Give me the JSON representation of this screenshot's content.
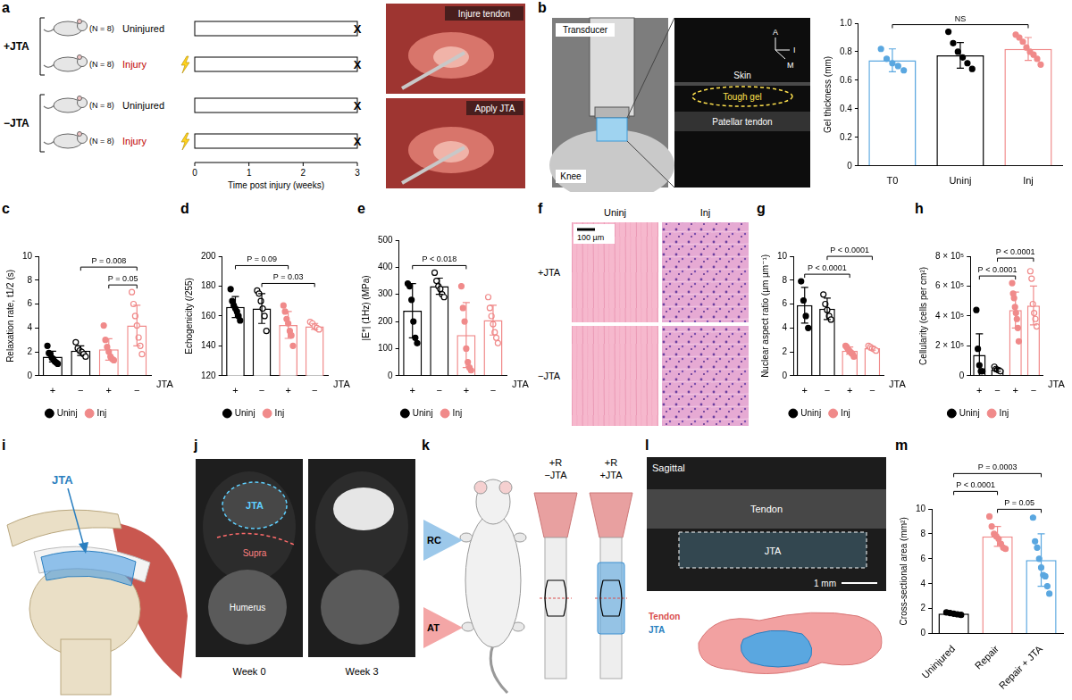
{
  "chart_data": [
    {
      "type": "bar",
      "y_label": "Gel thickness (mm)",
      "categories": [
        "T0",
        "Uninj",
        "Inj"
      ],
      "values": [
        0.74,
        0.775,
        0.82
      ],
      "errors": [
        0.08,
        0.09,
        0.08
      ],
      "points": [
        [
          0.82,
          0.75,
          0.72,
          0.7,
          0.67
        ],
        [
          0.94,
          0.86,
          0.8,
          0.76,
          0.72,
          0.68
        ],
        [
          0.92,
          0.9,
          0.87,
          0.83,
          0.8,
          0.78,
          0.75,
          0.71
        ]
      ],
      "colors": [
        "#5aa7e0",
        "#000000",
        "#f08a8a"
      ],
      "ylim": [
        0,
        1
      ],
      "yticks": [
        0,
        0.2,
        0.4,
        0.6,
        0.8,
        {
          "value": 1,
          "label": "1.0"
        }
      ],
      "grid": false,
      "comparisons": [
        {
          "from": 0,
          "to": 2,
          "label": "NS"
        }
      ]
    },
    {
      "panel": "c",
      "type": "bar",
      "y_label": "Relaxation rate, t1/2 (s)",
      "x_label": "JTA",
      "categories": [
        "+",
        "−",
        "+",
        "−"
      ],
      "ylim": [
        0,
        10
      ],
      "yticks": [
        0,
        2,
        4,
        6,
        8,
        10
      ],
      "grid": false,
      "legend": "bottom",
      "series": [
        {
          "name": "Uninj",
          "color": "#000000",
          "values": [
            1.6,
            2.1,
            null,
            null
          ],
          "errors": [
            0.45,
            0.4,
            null,
            null
          ],
          "points": [
            [
              2.5,
              1.9,
              1.8,
              1.5,
              1.4,
              1.2,
              1.1,
              1.0
            ],
            [
              2.8,
              2.3,
              2.1,
              2.0,
              1.8,
              1.6
            ],
            null,
            null
          ]
        },
        {
          "name": "Inj",
          "color": "#f08a8a",
          "values": [
            null,
            null,
            2.2,
            4.2
          ],
          "errors": [
            null,
            null,
            0.9,
            1.7
          ],
          "points": [
            null,
            null,
            [
              4.2,
              3.0,
              2.4,
              2.0,
              1.6,
              1.4,
              1.3
            ],
            [
              7.0,
              6.0,
              5.0,
              4.2,
              3.2,
              2.5,
              1.8
            ]
          ]
        }
      ],
      "comparisons": [
        {
          "from": 2,
          "to": 3,
          "label": "P = 0.05"
        },
        {
          "from": 1,
          "to": 3,
          "label": "P = 0.008"
        }
      ]
    },
    {
      "panel": "d",
      "type": "bar",
      "y_label": "Echogenicity (/255)",
      "x_label": "JTA",
      "categories": [
        "+",
        "−",
        "+",
        "−"
      ],
      "ylim": [
        120,
        200
      ],
      "yticks": [
        120,
        140,
        160,
        180,
        200
      ],
      "grid": false,
      "legend": "bottom",
      "series": [
        {
          "name": "Uninj",
          "color": "#000000",
          "values": [
            166,
            165,
            null,
            null
          ],
          "errors": [
            7,
            10,
            null,
            null
          ],
          "points": [
            [
              178,
              170,
              167,
              165,
              163,
              160,
              157
            ],
            [
              177,
              175,
              170,
              165,
              160,
              150
            ],
            null,
            null
          ]
        },
        {
          "name": "Inj",
          "color": "#f08a8a",
          "values": [
            null,
            null,
            154,
            153
          ],
          "errors": [
            null,
            null,
            9,
            2
          ],
          "points": [
            null,
            null,
            [
              167,
              163,
              158,
              155,
              150,
              147,
              140
            ],
            [
              156,
              155,
              153,
              152,
              151
            ]
          ]
        }
      ],
      "comparisons": [
        {
          "from": 1,
          "to": 3,
          "label": "P = 0.03"
        },
        {
          "from": 0,
          "to": 2,
          "label": "P = 0.09"
        }
      ]
    },
    {
      "panel": "e",
      "type": "bar",
      "y_label": "|E*| (1Hz) (MPa)",
      "x_label": "JTA",
      "categories": [
        "+",
        "−",
        "+",
        "−"
      ],
      "ylim": [
        0,
        500
      ],
      "yticks": [
        0,
        100,
        200,
        300,
        400,
        500
      ],
      "grid": false,
      "legend": "bottom",
      "series": [
        {
          "name": "Uninj",
          "color": "#000000",
          "values": [
            240,
            330,
            null,
            null
          ],
          "errors": [
            100,
            30,
            null,
            null
          ],
          "points": [
            [
              340,
              330,
              280,
              200,
              140,
              120
            ],
            [
              380,
              350,
              330,
              320,
              300,
              290
            ],
            null,
            null
          ]
        },
        {
          "name": "Inj",
          "color": "#f08a8a",
          "values": [
            null,
            null,
            150,
            205
          ],
          "errors": [
            null,
            null,
            120,
            55
          ],
          "points": [
            null,
            null,
            [
              330,
              250,
              200,
              100,
              50,
              30,
              20
            ],
            [
              290,
              250,
              220,
              190,
              160,
              140,
              120
            ]
          ]
        }
      ],
      "comparisons": [
        {
          "from": 0,
          "to": 2,
          "label": "P < 0.018"
        }
      ]
    },
    {
      "panel": "g",
      "type": "bar",
      "y_label": "Nuclear aspect ratio (µm µm⁻¹)",
      "x_label": "JTA",
      "categories": [
        "+",
        "−",
        "+",
        "−"
      ],
      "ylim": [
        0,
        10
      ],
      "yticks": [
        0,
        2,
        4,
        6,
        8,
        10
      ],
      "grid": false,
      "legend": "bottom",
      "series": [
        {
          "name": "Uninj",
          "color": "#000000",
          "values": [
            5.9,
            5.6,
            null,
            null
          ],
          "errors": [
            1.5,
            0.9,
            null,
            null
          ],
          "points": [
            [
              7.9,
              6.3,
              5.0,
              4.0
            ],
            [
              6.8,
              6.0,
              5.5,
              5.0,
              4.7
            ],
            null,
            null
          ]
        },
        {
          "name": "Inj",
          "color": "#f08a8a",
          "values": [
            null,
            null,
            2.1,
            2.3
          ],
          "errors": [
            null,
            null,
            0.3,
            0.15
          ],
          "points": [
            null,
            null,
            [
              2.5,
              2.4,
              2.2,
              2.1,
              2.0,
              1.9,
              1.8,
              1.6
            ],
            [
              2.5,
              2.4,
              2.3,
              2.2,
              2.1
            ]
          ]
        }
      ],
      "comparisons": [
        {
          "from": 0,
          "to": 2,
          "label": "P < 0.0001"
        },
        {
          "from": 1,
          "to": 3,
          "label": "P < 0.0001"
        }
      ]
    },
    {
      "panel": "h",
      "type": "bar",
      "y_label": "Cellularity (cells per cm²)",
      "x_label": "JTA",
      "categories": [
        "+",
        "−",
        "+",
        "−"
      ],
      "ylim": [
        0,
        800000
      ],
      "yticks": [
        0,
        {
          "value": 200000,
          "label": "2 × 10⁵"
        },
        {
          "value": 400000,
          "label": "4 × 10⁵"
        },
        {
          "value": 600000,
          "label": "6 × 10⁵"
        },
        {
          "value": 800000,
          "label": "8 × 10⁵"
        }
      ],
      "grid": false,
      "legend": "bottom",
      "series": [
        {
          "name": "Uninj",
          "color": "#000000",
          "values": [
            140000,
            40000,
            null,
            null
          ],
          "errors": [
            140000,
            10000,
            null,
            null
          ],
          "points": [
            [
              440000,
              180000,
              70000,
              30000,
              30000
            ],
            [
              60000,
              45000,
              40000,
              35000,
              30000
            ],
            null,
            null
          ]
        },
        {
          "name": "Inj",
          "color": "#f08a8a",
          "values": [
            null,
            null,
            440000,
            470000
          ],
          "errors": [
            null,
            null,
            120000,
            130000
          ],
          "points": [
            null,
            null,
            [
              620000,
              550000,
              520000,
              460000,
              420000,
              380000,
              320000,
              230000
            ],
            [
              700000,
              650000,
              480000,
              420000,
              380000,
              330000
            ]
          ]
        }
      ],
      "comparisons": [
        {
          "from": 0,
          "to": 2,
          "label": "P < 0.0001"
        },
        {
          "from": 1,
          "to": 3,
          "label": "P < 0.0001"
        }
      ]
    },
    {
      "panel": "m",
      "type": "bar",
      "y_label": "Cross-sectional area (mm²)",
      "categories": [
        "Uninjured",
        "Repair",
        "Repair + JTA"
      ],
      "values": [
        1.6,
        7.8,
        5.9
      ],
      "errors": [
        0.1,
        0.8,
        2.1
      ],
      "points": [
        [
          1.7,
          1.65,
          1.6,
          1.55,
          1.5
        ],
        [
          9.4,
          8.6,
          8.0,
          7.8,
          7.6,
          7.2,
          6.9,
          6.8
        ],
        [
          9.3,
          7.4,
          6.9,
          6.0,
          5.3,
          4.7,
          4.6,
          3.8,
          3.2
        ]
      ],
      "colors": [
        "#000000",
        "#f08a8a",
        "#5aa7e0"
      ],
      "ylim": [
        0,
        10
      ],
      "yticks": [
        0,
        2,
        4,
        6,
        8,
        10
      ],
      "grid": false,
      "comparisons": [
        {
          "from": 1,
          "to": 2,
          "label": "P = 0.05"
        },
        {
          "from": 0,
          "to": 1,
          "label": "P < 0.0001"
        },
        {
          "from": 0,
          "to": 2,
          "label": "P = 0.0003"
        }
      ]
    }
  ],
  "diagrams": {
    "a": {
      "panel": "a",
      "groups": [
        {
          "label": "+JTA",
          "rows": [
            {
              "n": "(N = 8)",
              "label": "Uninjured",
              "color": "#000000"
            },
            {
              "n": "(N = 8)",
              "label": "Injury",
              "color": "#c00000"
            }
          ]
        },
        {
          "label": "−JTA",
          "rows": [
            {
              "n": "(N = 8)",
              "label": "Uninjured",
              "color": "#000000"
            },
            {
              "n": "(N = 8)",
              "label": "Injury",
              "color": "#c00000"
            }
          ]
        }
      ],
      "end_mark": "X",
      "timeline_ticks": [
        0,
        1,
        2,
        3
      ],
      "timeline_title": "Time post injury (weeks)",
      "photos": [
        "Injure tendon",
        "Apply JTA"
      ]
    },
    "b": {
      "panel": "b",
      "photo_labels": [
        "Transducer",
        "Knee"
      ],
      "orientation": [
        "A",
        "I",
        "M"
      ],
      "ultrasound_labels": [
        "Skin",
        "Tough gel",
        "Patellar tendon"
      ]
    },
    "f": {
      "panel": "f",
      "columns": [
        "Uninj",
        "Inj"
      ],
      "rows": [
        "+JTA",
        "−JTA"
      ],
      "scale_bar": "100 µm"
    },
    "i": {
      "panel": "i",
      "label": "JTA"
    },
    "j": {
      "panel": "j",
      "gel": "JTA",
      "tendon": "Supra",
      "bone": "Humerus",
      "times": [
        "Week 0",
        "Week 3"
      ]
    },
    "k": {
      "panel": "k",
      "sites": [
        "RC",
        "AT"
      ],
      "groups": [
        [
          "+R",
          "−JTA"
        ],
        [
          "+R",
          "+JTA"
        ]
      ]
    },
    "l": {
      "panel": "l",
      "view": "Sagittal",
      "tendon": "Tendon",
      "gel": "JTA",
      "scale_bar": "1 mm",
      "render_legend": [
        {
          "label": "Tendon",
          "color": "#d94f4f"
        },
        {
          "label": "JTA",
          "color": "#2a7fc0"
        }
      ]
    }
  }
}
